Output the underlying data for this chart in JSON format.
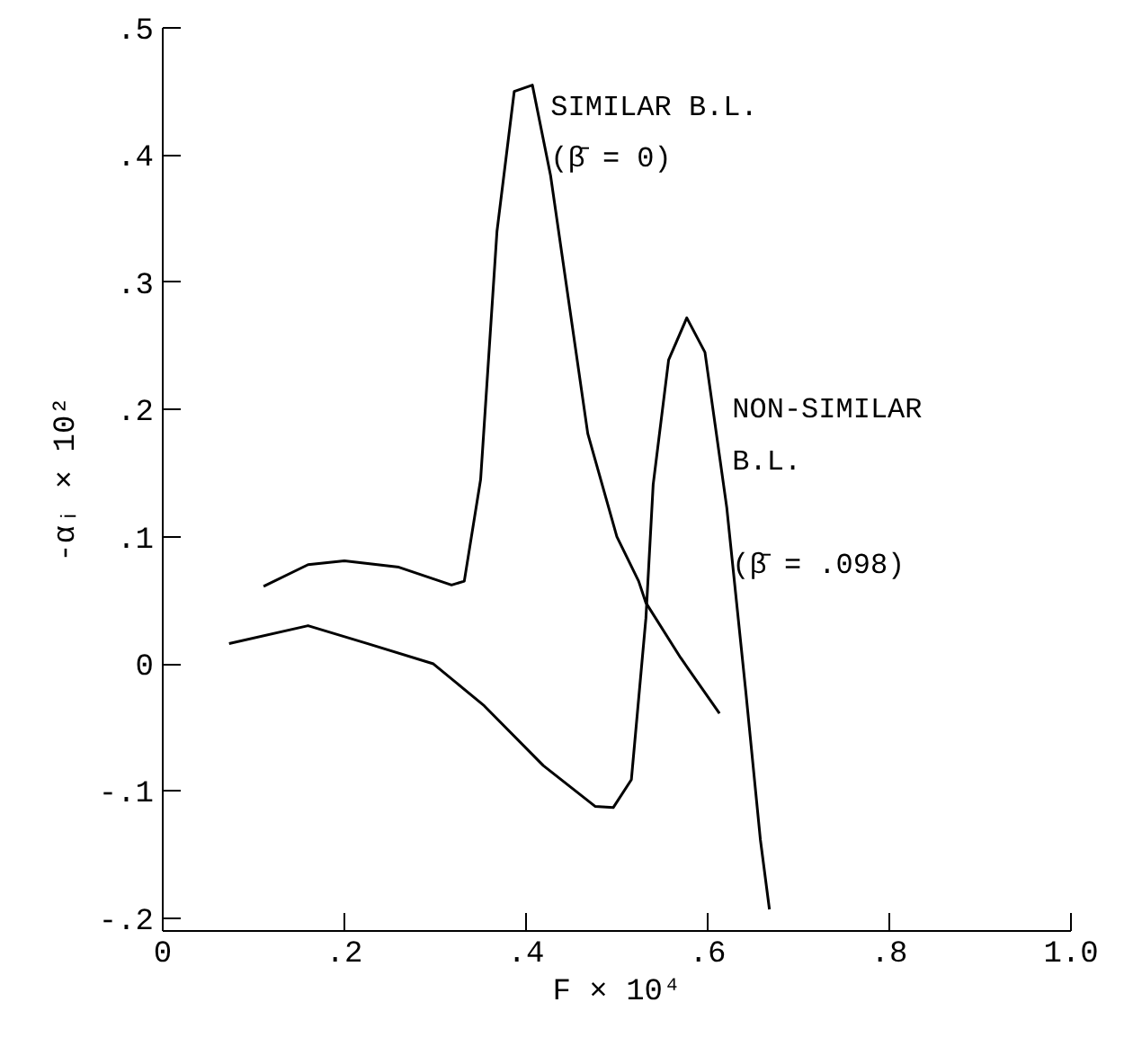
{
  "chart_data": {
    "type": "line",
    "xlabel": "F × 10⁴",
    "ylabel": "-αᵢ × 10²",
    "xlim": [
      0,
      1.0
    ],
    "ylim": [
      -0.21,
      0.5
    ],
    "xticks": [
      0,
      {
        "value": 0.2,
        "label": ".2"
      },
      {
        "value": 0.4,
        "label": ".4"
      },
      {
        "value": 0.6,
        "label": ".6"
      },
      {
        "value": 0.8,
        "label": ".8"
      },
      {
        "value": 1.0,
        "label": "1.0"
      }
    ],
    "yticks": [
      {
        "value": -0.2,
        "label": "-.2"
      },
      {
        "value": -0.1,
        "label": "-.1"
      },
      0,
      {
        "value": 0.1,
        "label": ".1"
      },
      {
        "value": 0.2,
        "label": ".2"
      },
      {
        "value": 0.3,
        "label": ".3"
      },
      {
        "value": 0.4,
        "label": ".4"
      },
      {
        "value": 0.5,
        "label": ".5"
      }
    ],
    "grid": false,
    "marker": "none",
    "line_style": "solid",
    "series": [
      {
        "name": "SIMILAR B.L.\n(β̄ = 0)",
        "color": "#000000",
        "x": [
          0.111,
          0.16,
          0.2,
          0.26,
          0.318,
          0.332,
          0.35,
          0.368,
          0.387,
          0.407,
          0.427,
          0.447,
          0.468,
          0.5,
          0.524,
          0.532,
          0.57,
          0.613
        ],
        "values": [
          0.061,
          0.078,
          0.081,
          0.076,
          0.062,
          0.065,
          0.145,
          0.34,
          0.45,
          0.455,
          0.384,
          0.285,
          0.181,
          0.1,
          0.065,
          0.048,
          0.005,
          -0.039
        ]
      },
      {
        "name": "NON-SIMILAR\nB.L.\n\n(β̄ = .098)",
        "color": "#000000",
        "x": [
          0.073,
          0.16,
          0.225,
          0.298,
          0.354,
          0.419,
          0.476,
          0.496,
          0.516,
          0.532,
          0.54,
          0.557,
          0.577,
          0.597,
          0.621,
          0.642,
          0.658,
          0.668
        ],
        "values": [
          0.016,
          0.03,
          0.016,
          0.0,
          -0.033,
          -0.08,
          -0.112,
          -0.113,
          -0.091,
          0.036,
          0.141,
          0.239,
          0.272,
          0.245,
          0.123,
          -0.022,
          -0.138,
          -0.193
        ]
      }
    ]
  }
}
